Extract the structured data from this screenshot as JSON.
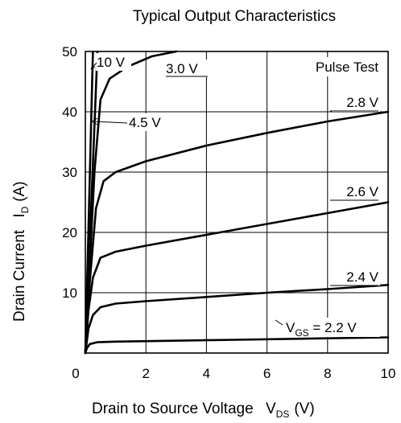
{
  "chart_data": {
    "type": "line",
    "title": "Typical Output Characteristics",
    "xlabel": {
      "main": "Drain to Source Voltage",
      "symbol": "V",
      "subscript": "DS",
      "unit": "(V)"
    },
    "ylabel": {
      "main": "Drain Current",
      "symbol": "I",
      "subscript": "D",
      "unit": "(A)"
    },
    "xlim": [
      0,
      10
    ],
    "ylim": [
      0,
      50
    ],
    "x_ticks": [
      0,
      2,
      4,
      6,
      8,
      10
    ],
    "x_tick_labels": [
      "0",
      "2",
      "4",
      "6",
      "8",
      "10"
    ],
    "y_ticks": [
      10,
      20,
      30,
      40,
      50
    ],
    "y_tick_labels": [
      "10",
      "20",
      "30",
      "40",
      "50"
    ],
    "grid": true,
    "annotation": "Pulse Test",
    "series": [
      {
        "label": "10 V",
        "points": [
          [
            0,
            0
          ],
          [
            0.25,
            50
          ]
        ]
      },
      {
        "label": "4.5 V",
        "points": [
          [
            0,
            0
          ],
          [
            0.4,
            50
          ]
        ]
      },
      {
        "label": "3.0 V",
        "points": [
          [
            0,
            0
          ],
          [
            0.3,
            30
          ],
          [
            0.5,
            42
          ],
          [
            0.8,
            45.5
          ],
          [
            1.4,
            47.5
          ],
          [
            2.2,
            49.2
          ],
          [
            3.0,
            50
          ]
        ]
      },
      {
        "label": "2.8 V",
        "points": [
          [
            0,
            0
          ],
          [
            0.15,
            12
          ],
          [
            0.35,
            24
          ],
          [
            0.6,
            28.5
          ],
          [
            1.0,
            30
          ],
          [
            2.0,
            31.8
          ],
          [
            4.0,
            34.4
          ],
          [
            6.0,
            36.5
          ],
          [
            8.0,
            38.4
          ],
          [
            10,
            40
          ]
        ]
      },
      {
        "label": "2.6 V",
        "points": [
          [
            0,
            0
          ],
          [
            0.1,
            7
          ],
          [
            0.25,
            12.5
          ],
          [
            0.5,
            15.8
          ],
          [
            1.0,
            16.8
          ],
          [
            2.0,
            17.8
          ],
          [
            4.0,
            19.6
          ],
          [
            6.0,
            21.4
          ],
          [
            8.0,
            23.2
          ],
          [
            10,
            25
          ]
        ]
      },
      {
        "label": "2.4 V",
        "points": [
          [
            0,
            0
          ],
          [
            0.1,
            4
          ],
          [
            0.25,
            6.3
          ],
          [
            0.5,
            7.6
          ],
          [
            1.0,
            8.2
          ],
          [
            2.0,
            8.6
          ],
          [
            4.0,
            9.3
          ],
          [
            6.0,
            10.0
          ],
          [
            8.0,
            10.6
          ],
          [
            10,
            11.3
          ]
        ]
      },
      {
        "label": "2.2 V",
        "label_prefix": "V",
        "label_sub": "GS",
        "label_text": " = 2.2 V",
        "points": [
          [
            0,
            0
          ],
          [
            0.05,
            0.8
          ],
          [
            0.15,
            1.5
          ],
          [
            0.4,
            1.8
          ],
          [
            1.0,
            1.9
          ],
          [
            5.0,
            2.2
          ],
          [
            10,
            2.6
          ]
        ]
      }
    ]
  }
}
